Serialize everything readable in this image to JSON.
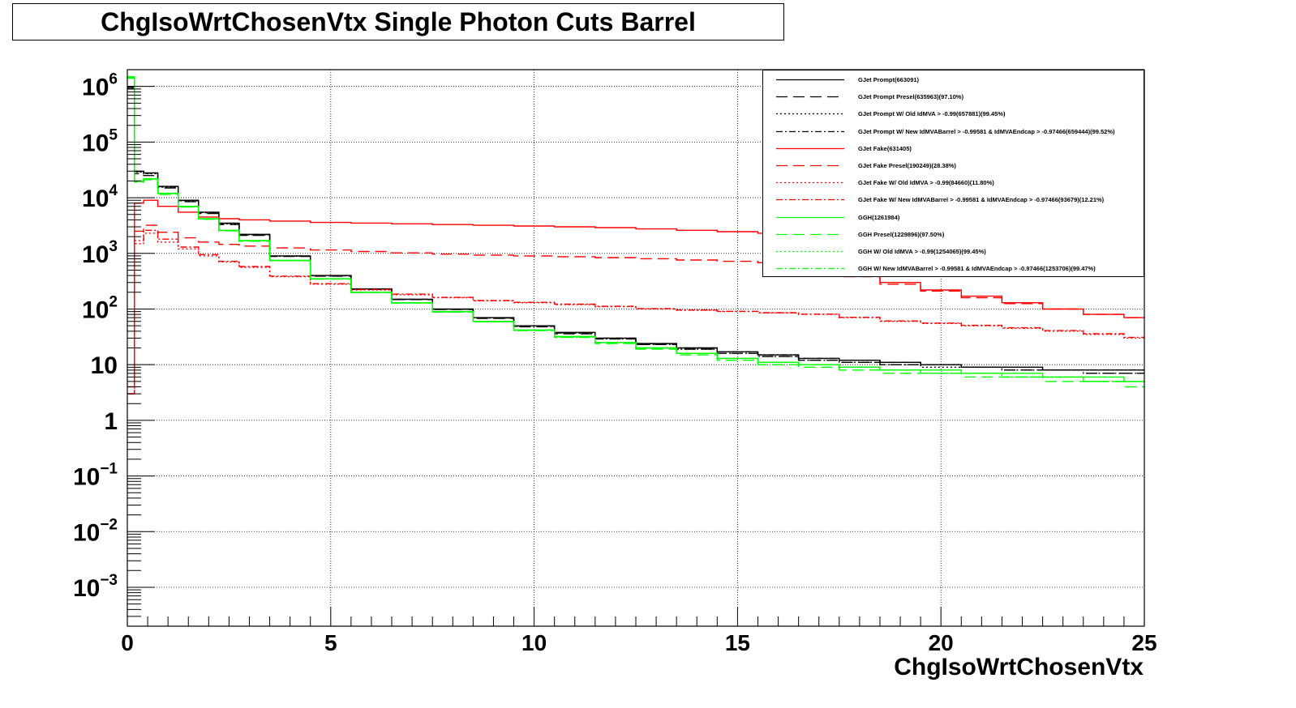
{
  "title": "ChgIsoWrtChosenVtx Single Photon Cuts Barrel",
  "chart_data": {
    "type": "line",
    "title": "ChgIsoWrtChosenVtx Single Photon Cuts Barrel",
    "xlabel": "ChgIsoWrtChosenVtx",
    "ylabel": "",
    "xlim": [
      0,
      25
    ],
    "ylim": [
      0.0002,
      2000000
    ],
    "yscale": "log",
    "grid": true,
    "legend_position": "top-right",
    "x_ticks": [
      "0",
      "5",
      "10",
      "15",
      "20",
      "25"
    ],
    "y_ticks": [
      {
        "base": "10",
        "exp": "6"
      },
      {
        "base": "10",
        "exp": "5"
      },
      {
        "base": "10",
        "exp": "4"
      },
      {
        "base": "10",
        "exp": "3"
      },
      {
        "base": "10",
        "exp": "2"
      },
      {
        "base": "10",
        "exp": ""
      },
      {
        "base": "1",
        "exp": ""
      },
      {
        "base": "10",
        "exp": "−1"
      },
      {
        "base": "10",
        "exp": "−2"
      },
      {
        "base": "10",
        "exp": "−3"
      }
    ],
    "y_tick_values": [
      1000000,
      100000,
      10000,
      1000,
      100,
      10,
      1,
      0.1,
      0.01,
      0.001
    ],
    "x": [
      0.05,
      0.3,
      0.5,
      1,
      1.5,
      2,
      2.5,
      3,
      4,
      5,
      6,
      7,
      8,
      9,
      10,
      11,
      12,
      13,
      14,
      15,
      16,
      17,
      18,
      19,
      20,
      21,
      22,
      23,
      24,
      25
    ],
    "series": [
      {
        "name": "GJet Prompt(663091)",
        "color": "#000000",
        "dash": "solid",
        "values": [
          1000000,
          30000,
          28000,
          16000,
          9000,
          5500,
          3500,
          2200,
          900,
          400,
          230,
          150,
          100,
          70,
          50,
          38,
          30,
          24,
          20,
          17,
          15,
          13,
          12,
          11,
          10,
          9,
          9,
          8,
          8,
          8
        ]
      },
      {
        "name": "GJet Prompt Presel(635963)(97.10%)",
        "color": "#000000",
        "dash": "dashed",
        "values": [
          900000,
          27000,
          25000,
          15000,
          8500,
          5200,
          3300,
          2100,
          880,
          390,
          225,
          148,
          98,
          68,
          48,
          36,
          29,
          23,
          19,
          16,
          14,
          12,
          11,
          10,
          10,
          9,
          8,
          8,
          7,
          7
        ]
      },
      {
        "name": "GJet Prompt W/ Old IdMVA > -0.99(657881)(99.45%)",
        "color": "#000000",
        "dash": "dotted",
        "values": [
          950000,
          29000,
          27000,
          15500,
          8800,
          5400,
          3400,
          2150,
          890,
          395,
          228,
          149,
          99,
          69,
          49,
          37,
          29,
          23,
          19,
          16,
          14,
          12,
          11,
          10,
          9,
          9,
          8,
          8,
          7,
          7
        ]
      },
      {
        "name": "GJet Prompt W/ New IdMVABarrel > -0.99581 & IdMVAEndcap > -0.97466(659444)(99.52%)",
        "color": "#000000",
        "dash": "dashdot",
        "values": [
          960000,
          29500,
          27500,
          15800,
          8900,
          5450,
          3450,
          2180,
          895,
          398,
          229,
          150,
          99,
          69,
          49,
          37,
          30,
          24,
          20,
          17,
          15,
          13,
          12,
          11,
          10,
          9,
          9,
          8,
          8,
          8
        ]
      },
      {
        "name": "GJet Fake(631405)",
        "color": "#ff0000",
        "dash": "solid",
        "values": [
          4,
          8000,
          9000,
          7000,
          5500,
          4500,
          4200,
          4000,
          3800,
          3600,
          3500,
          3400,
          3300,
          3200,
          3100,
          3000,
          2900,
          2750,
          2600,
          2450,
          2300,
          600,
          420,
          300,
          220,
          170,
          130,
          100,
          80,
          70
        ]
      },
      {
        "name": "GJet Fake Presel(190249)(28.38%)",
        "color": "#ff0000",
        "dash": "dashed",
        "values": [
          3,
          2500,
          3200,
          2400,
          1900,
          1600,
          1450,
          1350,
          1250,
          1150,
          1080,
          1020,
          970,
          930,
          900,
          870,
          840,
          800,
          760,
          720,
          680,
          500,
          380,
          280,
          210,
          160,
          125,
          100,
          80,
          70
        ]
      },
      {
        "name": "GJet Fake W/ Old IdMVA > -0.99(84660)(11.80%)",
        "color": "#ff0000",
        "dash": "dotted",
        "values": [
          3,
          1500,
          2300,
          1600,
          1200,
          900,
          700,
          560,
          380,
          280,
          220,
          180,
          160,
          140,
          130,
          120,
          110,
          100,
          95,
          90,
          85,
          80,
          70,
          60,
          55,
          50,
          45,
          40,
          35,
          30
        ]
      },
      {
        "name": "GJet Fake W/ New IdMVABarrel > -0.99581 & IdMVAEndcap > -0.97466(93679)(12.21%)",
        "color": "#ff0000",
        "dash": "dashdot",
        "values": [
          3,
          1700,
          2600,
          1800,
          1300,
          950,
          720,
          580,
          390,
          285,
          225,
          185,
          162,
          142,
          132,
          122,
          112,
          102,
          96,
          91,
          86,
          81,
          71,
          61,
          56,
          51,
          46,
          41,
          36,
          31
        ]
      },
      {
        "name": "GGH(1261984)",
        "color": "#00ff00",
        "dash": "solid",
        "values": [
          1500000,
          20000,
          22000,
          12000,
          7000,
          4200,
          2600,
          1700,
          750,
          350,
          200,
          130,
          90,
          60,
          42,
          32,
          25,
          20,
          16,
          13,
          11,
          10,
          9,
          8,
          8,
          7,
          7,
          6,
          6,
          5
        ]
      },
      {
        "name": "GGH Presel(1229896)(97.50%)",
        "color": "#00ff00",
        "dash": "dashed",
        "values": [
          1400000,
          19000,
          21000,
          11500,
          6800,
          4100,
          2550,
          1650,
          740,
          345,
          198,
          128,
          88,
          59,
          41,
          31,
          24,
          19,
          15,
          12,
          10,
          9,
          8,
          7,
          7,
          6,
          6,
          5,
          5,
          4
        ]
      },
      {
        "name": "GGH W/ Old IdMVA > -0.99(1254065)(99.45%)",
        "color": "#00ff00",
        "dash": "dotted",
        "values": [
          1450000,
          19500,
          21500,
          11800,
          6900,
          4150,
          2580,
          1680,
          745,
          348,
          199,
          129,
          89,
          59,
          41,
          31,
          25,
          20,
          16,
          13,
          11,
          10,
          9,
          8,
          7,
          7,
          6,
          6,
          5,
          5
        ]
      },
      {
        "name": "GGH W/ New IdMVABarrel > -0.99581 & IdMVAEndcap > -0.97466(1253706)(99.47%)",
        "color": "#00ff00",
        "dash": "dashdot",
        "values": [
          1460000,
          19600,
          21600,
          11850,
          6920,
          4160,
          2590,
          1690,
          746,
          349,
          199,
          129,
          89,
          60,
          42,
          32,
          25,
          20,
          16,
          13,
          11,
          10,
          9,
          8,
          7,
          7,
          6,
          6,
          5,
          5
        ]
      }
    ]
  }
}
